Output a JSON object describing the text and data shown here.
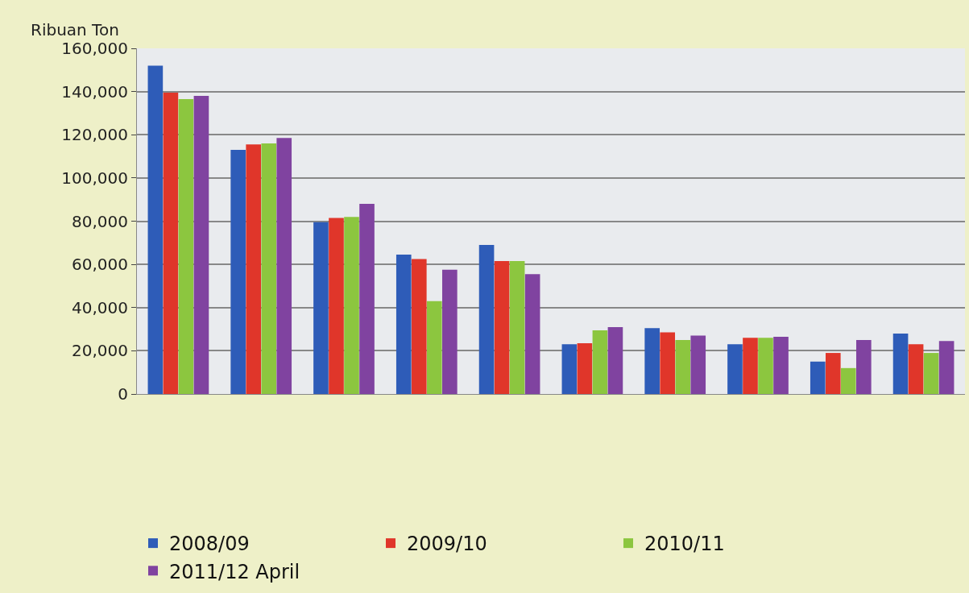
{
  "chart_data": {
    "type": "bar",
    "ylabel": "Ribuan Ton",
    "categories": [
      null,
      null,
      null,
      null,
      null,
      null,
      null,
      null,
      null,
      null
    ],
    "series": [
      {
        "name": "2008/09",
        "color": "#2e5cb8",
        "values": [
          152000,
          113000,
          79500,
          64500,
          69000,
          23000,
          30500,
          23000,
          15000,
          28000
        ]
      },
      {
        "name": "2009/10",
        "color": "#e0362a",
        "values": [
          139500,
          115500,
          81500,
          62500,
          61500,
          23500,
          28500,
          26000,
          19000,
          23000
        ]
      },
      {
        "name": "2010/11",
        "color": "#8cc63f",
        "values": [
          136500,
          116000,
          82000,
          43000,
          61500,
          29500,
          25000,
          26000,
          12000,
          19000
        ]
      },
      {
        "name": "2011/12 April",
        "color": "#8043a0",
        "values": [
          138000,
          118500,
          88000,
          57500,
          55500,
          31000,
          27000,
          26500,
          25000,
          24500
        ]
      }
    ],
    "ylim": [
      0,
      160000
    ],
    "yticks": [
      {
        "value": 0,
        "label": "0"
      },
      {
        "value": 20000,
        "label": "20,000"
      },
      {
        "value": 40000,
        "label": "40,000"
      },
      {
        "value": 60000,
        "label": "60,000"
      },
      {
        "value": 80000,
        "label": "80,000"
      },
      {
        "value": 100000,
        "label": "100,000"
      },
      {
        "value": 120000,
        "label": "120,000"
      },
      {
        "value": 140000,
        "label": "140,000"
      },
      {
        "value": 160000,
        "label": "160,000"
      }
    ],
    "grid": "y",
    "legend": "bottom"
  }
}
